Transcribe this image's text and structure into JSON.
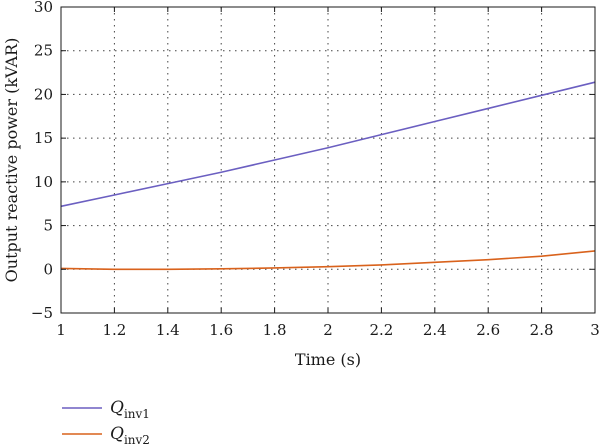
{
  "chart_data": {
    "type": "line",
    "xlabel": "Time (s)",
    "ylabel": "Output reactive power (kVAR)",
    "xlim": [
      1,
      3
    ],
    "ylim": [
      -5,
      30
    ],
    "xticks": [
      1,
      1.2,
      1.4,
      1.6,
      1.8,
      2,
      2.2,
      2.4,
      2.6,
      2.8,
      3
    ],
    "yticks": [
      -5,
      0,
      5,
      10,
      15,
      20,
      25,
      30
    ],
    "grid": true,
    "grid_style": "dotted",
    "legend_position": "bottom-left",
    "series": [
      {
        "name": "Q",
        "subscript": "inv1",
        "color": "#6b5fc1",
        "x": [
          1.0,
          1.2,
          1.4,
          1.6,
          1.8,
          2.0,
          2.2,
          2.4,
          2.6,
          2.8,
          3.0
        ],
        "y": [
          7.2,
          8.5,
          9.8,
          11.1,
          12.5,
          13.9,
          15.4,
          16.9,
          18.4,
          19.9,
          21.4
        ]
      },
      {
        "name": "Q",
        "subscript": "inv2",
        "color": "#d9621c",
        "x": [
          1.0,
          1.2,
          1.4,
          1.6,
          1.8,
          2.0,
          2.2,
          2.4,
          2.6,
          2.8,
          3.0
        ],
        "y": [
          0.1,
          0.0,
          0.0,
          0.05,
          0.15,
          0.3,
          0.5,
          0.8,
          1.1,
          1.5,
          2.1
        ]
      }
    ]
  }
}
